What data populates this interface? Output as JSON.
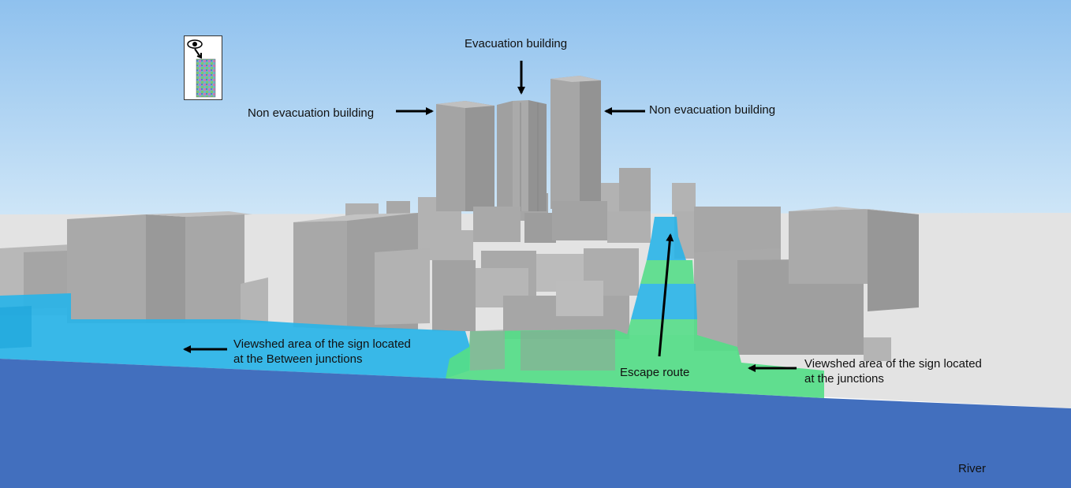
{
  "labels": {
    "evacuation": "Evacuation building",
    "non_evac_left": "Non evacuation building",
    "non_evac_right": "Non evacuation building",
    "viewshed_between_line1": "Viewshed area of the sign located",
    "viewshed_between_line2": "at the Between junctions",
    "escape_route": "Escape route",
    "viewshed_junctions_line1": "Viewshed area of the sign located",
    "viewshed_junctions_line2": "at the junctions",
    "river": "River"
  },
  "colors": {
    "sky_top": "#8fc1ee",
    "sky_bottom": "#d4e9f8",
    "ground": "#e3e3e3",
    "building": "#a3a3a3",
    "building_dark": "#8c8c8c",
    "building_light": "#bdbdbd",
    "viewshed_between": "#29b4e8",
    "viewshed_junctions": "#55dd88",
    "river": "#426fbe",
    "arrow": "#000000"
  },
  "icons": {
    "eye": "eye-icon",
    "sign": "sign-thumbnail-icon"
  }
}
